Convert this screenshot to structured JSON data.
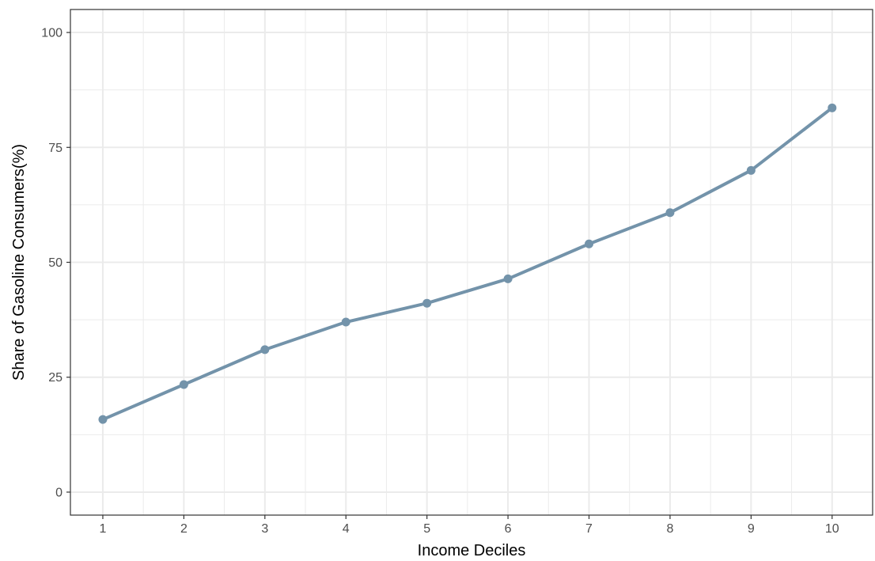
{
  "chart_data": {
    "type": "line",
    "title": "",
    "xlabel": "Income Deciles",
    "ylabel": "Share of Gasoline Consumers(%)",
    "x": [
      1,
      2,
      3,
      4,
      5,
      6,
      7,
      8,
      9,
      10
    ],
    "series": [
      {
        "values": [
          15.8,
          23.4,
          31.0,
          37.0,
          41.1,
          46.4,
          54.0,
          60.8,
          70.0,
          83.6
        ],
        "color": "#7393aa"
      }
    ],
    "xlim": [
      0.6,
      10.5
    ],
    "ylim": [
      -5,
      105
    ],
    "x_ticks": [
      1,
      2,
      3,
      4,
      5,
      6,
      7,
      8,
      9,
      10
    ],
    "y_ticks": [
      0,
      25,
      50,
      75,
      100
    ],
    "y_minor_ticks": [
      12.5,
      37.5,
      62.5,
      87.5
    ],
    "grid": true,
    "legend": "none",
    "panel_border": true,
    "colors": {
      "grid": "#ebebeb",
      "border": "#333333",
      "tick_label": "#4d4d4d",
      "axis_title": "#000000"
    }
  }
}
